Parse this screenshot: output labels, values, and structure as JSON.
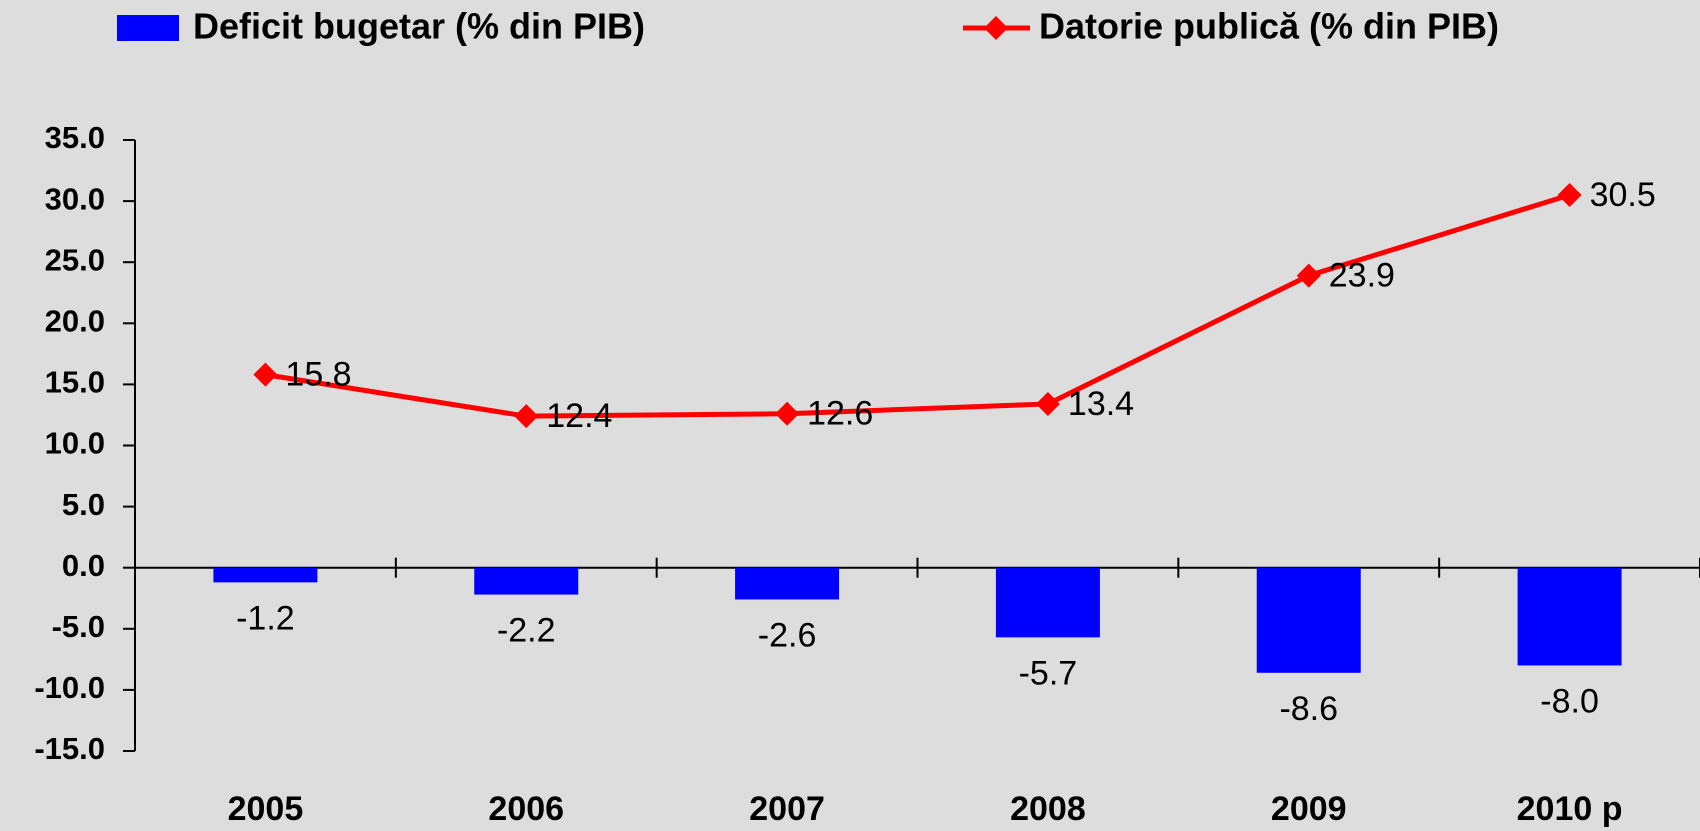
{
  "chart_data": {
    "type": "bar",
    "categories": [
      "2005",
      "2006",
      "2007",
      "2008",
      "2009",
      "2010 p"
    ],
    "series": [
      {
        "name": "Deficit bugetar (% din PIB)",
        "type": "bar",
        "color": "#0000ff",
        "values": [
          -1.2,
          -2.2,
          -2.6,
          -5.7,
          -8.6,
          -8.0
        ],
        "value_labels": [
          "-1.2",
          "-2.2",
          "-2.6",
          "-5.7",
          "-8.6",
          "-8.0"
        ]
      },
      {
        "name": "Datorie publică (% din PIB)",
        "type": "line",
        "color": "#ff0000",
        "values": [
          15.8,
          12.4,
          12.6,
          13.4,
          23.9,
          30.5
        ]
      }
    ],
    "ylim": [
      -15,
      35
    ],
    "yticks": [
      {
        "value": 35,
        "label": "35.0"
      },
      {
        "value": 30,
        "label": "30.0"
      },
      {
        "value": 25,
        "label": "25.0"
      },
      {
        "value": 20,
        "label": "20.0"
      },
      {
        "value": 15,
        "label": "15.0"
      },
      {
        "value": 10,
        "label": "10.0"
      },
      {
        "value": 5,
        "label": "5.0"
      },
      {
        "value": 0,
        "label": "0.0"
      },
      {
        "value": -5,
        "label": "-5.0"
      },
      {
        "value": -10,
        "label": "-10.0"
      },
      {
        "value": -15,
        "label": "-15.0"
      }
    ],
    "grid": false,
    "legend": "top"
  }
}
